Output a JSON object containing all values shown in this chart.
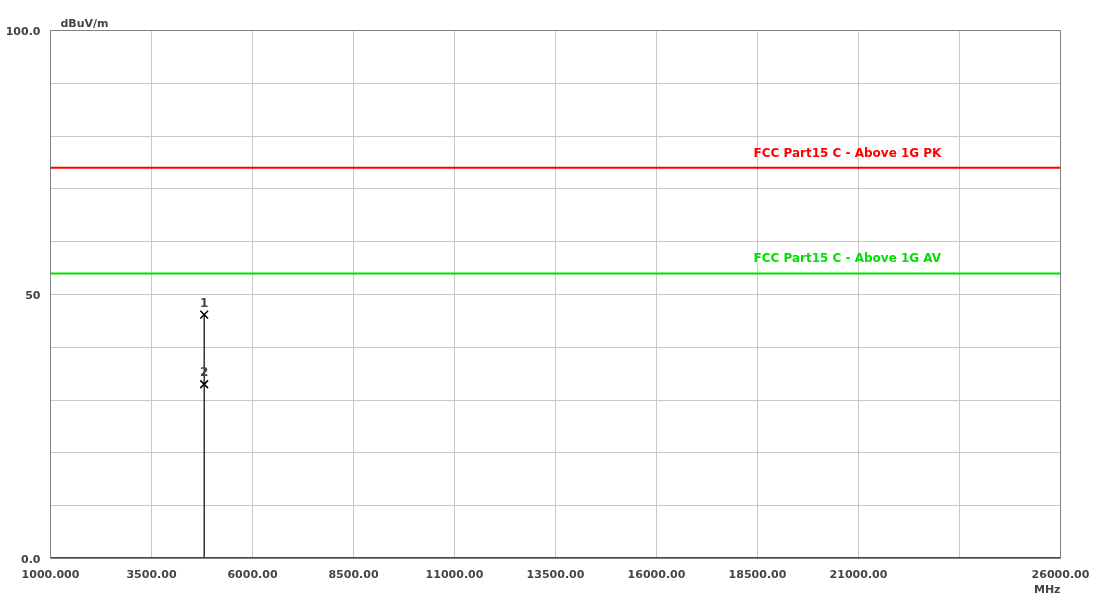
{
  "chart_data": {
    "type": "line",
    "ylabel": "dBuV/m",
    "xlabel": "MHz",
    "xlim": [
      1000,
      26000
    ],
    "xticks": [
      {
        "value": 1000,
        "label": "1000.000"
      },
      {
        "value": 3500,
        "label": "3500.00"
      },
      {
        "value": 6000,
        "label": "6000.00"
      },
      {
        "value": 8500,
        "label": "8500.00"
      },
      {
        "value": 11000,
        "label": "11000.00"
      },
      {
        "value": 13500,
        "label": "13500.00"
      },
      {
        "value": 16000,
        "label": "16000.00"
      },
      {
        "value": 18500,
        "label": "18500.00"
      },
      {
        "value": 21000,
        "label": "21000.00"
      },
      {
        "value": 23500,
        "label": null
      },
      {
        "value": 26000,
        "label": "26000.00"
      }
    ],
    "ylim": [
      0,
      100
    ],
    "yticks": [
      {
        "value": 0,
        "label": "0.0"
      },
      {
        "value": 10,
        "label": null
      },
      {
        "value": 20,
        "label": null
      },
      {
        "value": 30,
        "label": null
      },
      {
        "value": 40,
        "label": null
      },
      50,
      {
        "value": 60,
        "label": null
      },
      {
        "value": 70,
        "label": null
      },
      {
        "value": 80,
        "label": null
      },
      {
        "value": 90,
        "label": null
      },
      {
        "value": 100,
        "label": "100.0"
      }
    ],
    "grid": true,
    "series": [
      {
        "type": "lollipop",
        "color": "#000000",
        "x": [
          4804
        ],
        "values": [
          46.2
        ],
        "marker": "cross"
      },
      {
        "type": "scatter",
        "color": "#000000",
        "x": [
          4804
        ],
        "values": [
          33.0
        ],
        "marker": "cross"
      },
      {
        "color": "#3030ff",
        "x": [
          1000,
          26000
        ],
        "values": [
          0,
          0
        ],
        "marker": "none"
      }
    ],
    "ref_lines": [
      {
        "axis": "y",
        "value": 74,
        "label": "FCC Part15 C - Above 1G PK",
        "color": "#ff0000"
      },
      {
        "axis": "y",
        "value": 54,
        "label": "FCC Part15 C - Above 1G AV",
        "color": "#00e000"
      }
    ],
    "annotations": [
      {
        "text": "1",
        "x": 4804,
        "y": 46.2
      },
      {
        "text": "2",
        "x": 4804,
        "y": 33.0
      }
    ]
  }
}
